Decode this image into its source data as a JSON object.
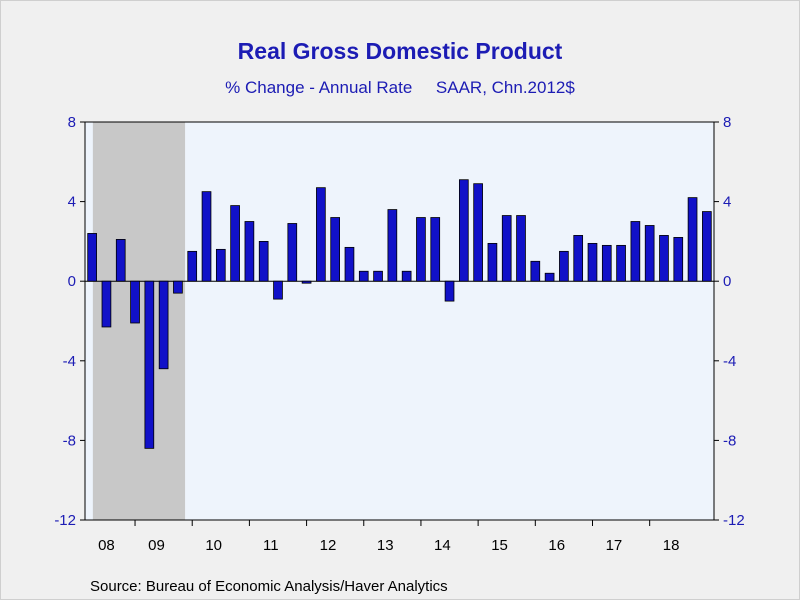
{
  "chart_data": {
    "type": "bar",
    "title": "Real Gross Domestic Product",
    "subtitle_left": "% Change - Annual Rate",
    "subtitle_right": "SAAR, Chn.2012$",
    "source": "Source:  Bureau of Economic Analysis/Haver Analytics",
    "ylim": [
      -12,
      8
    ],
    "yticks": [
      8,
      4,
      0,
      -4,
      -8,
      -12
    ],
    "year_labels": [
      "08",
      "09",
      "10",
      "11",
      "12",
      "13",
      "14",
      "15",
      "16",
      "17",
      "18"
    ],
    "values": [
      2.4,
      -2.3,
      2.1,
      -2.1,
      -8.4,
      -4.4,
      -0.6,
      1.5,
      4.5,
      1.6,
      3.8,
      3.0,
      2.0,
      -0.9,
      2.9,
      -0.1,
      4.7,
      3.2,
      1.7,
      0.5,
      0.5,
      3.6,
      0.5,
      3.2,
      3.2,
      -1.0,
      5.1,
      4.9,
      1.9,
      3.3,
      3.3,
      1.0,
      0.4,
      1.5,
      2.3,
      1.9,
      1.8,
      1.8,
      3.0,
      2.8,
      2.3,
      2.2,
      4.2,
      3.5
    ],
    "recession_shading": {
      "from_index": 0,
      "to_index": 6,
      "color": "#c8c8c8"
    },
    "colors": {
      "bar": "#1111c8",
      "plot_background": "#eef4fc",
      "text": "#1c1cb4"
    },
    "grid": false
  }
}
